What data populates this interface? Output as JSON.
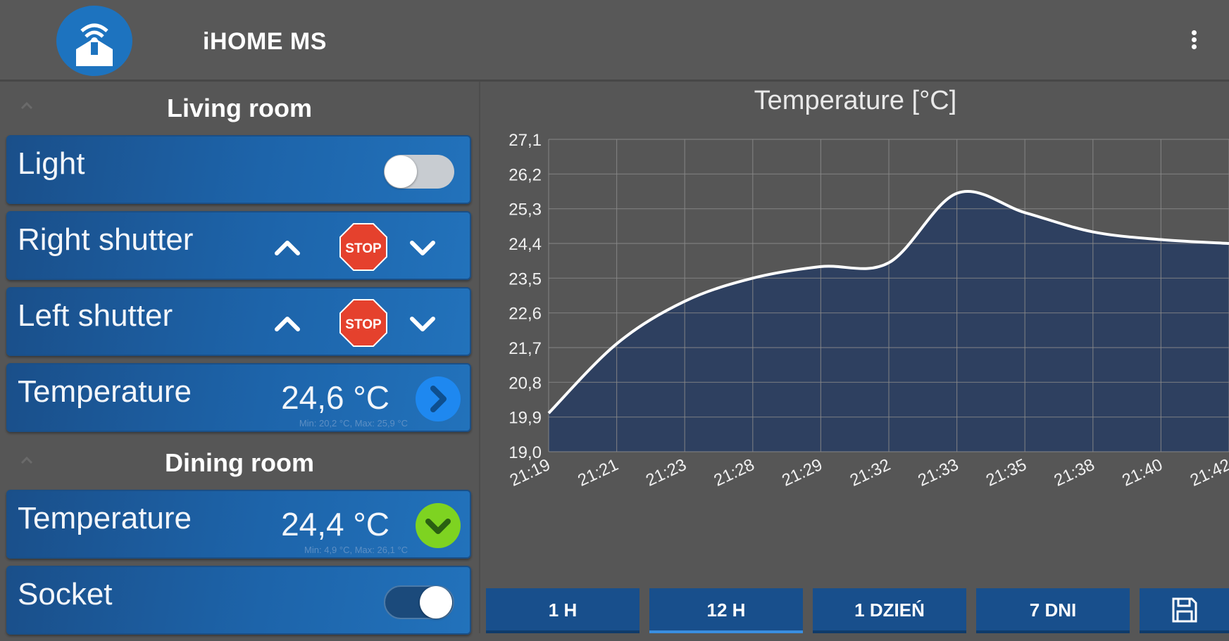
{
  "app": {
    "title": "iHOME MS"
  },
  "sections": [
    {
      "title": "Living room"
    },
    {
      "title": "Dining room"
    }
  ],
  "living": {
    "light_label": "Light",
    "right_shutter_label": "Right shutter",
    "left_shutter_label": "Left shutter",
    "stop_label": "STOP",
    "temperature_label": "Temperature",
    "temperature_value": "24,6 °C",
    "temperature_minmax": "Min: 20,2 °C, Max: 25,9 °C"
  },
  "dining": {
    "temperature_label": "Temperature",
    "temperature_value": "24,4 °C",
    "temperature_minmax": "Min: 4,9 °C, Max: 26,1 °C",
    "socket_label": "Socket"
  },
  "toggles": {
    "light_on": false,
    "socket_on": true
  },
  "colors": {
    "stop_red": "#e5412d",
    "temp_blue_button": "#1e88f0",
    "temp_green_button": "#7ed321",
    "chart_fill": "#2e4060"
  },
  "icons": {
    "app_logo": "house-wifi-icon",
    "menu": "more-vertical-icon",
    "up": "chevron-up-icon",
    "down": "chevron-down-icon",
    "stop": "stop-sign-icon",
    "forward": "chevron-right-icon",
    "expand": "chevron-down-icon",
    "save": "floppy-disk-icon"
  },
  "range_buttons": [
    "1 H",
    "12 H",
    "1 DZIEŃ",
    "7 DNI"
  ],
  "range_active": "12 H",
  "chart_data": {
    "type": "area",
    "title": "Temperature [°C]",
    "xlabel": "",
    "ylabel": "",
    "ylim": [
      19.0,
      27.1
    ],
    "yticks": [
      "19,0",
      "19,9",
      "20,8",
      "21,7",
      "22,6",
      "23,5",
      "24,4",
      "25,3",
      "26,2",
      "27,1"
    ],
    "categories": [
      "21:19",
      "21:21",
      "21:23",
      "21:28",
      "21:29",
      "21:32",
      "21:33",
      "21:35",
      "21:38",
      "21:40",
      "21:42"
    ],
    "series": [
      {
        "values": [
          20.0,
          21.8,
          22.9,
          23.5,
          23.8,
          23.9,
          25.7,
          25.2,
          24.7,
          24.5,
          24.4
        ]
      }
    ],
    "grid": true
  }
}
